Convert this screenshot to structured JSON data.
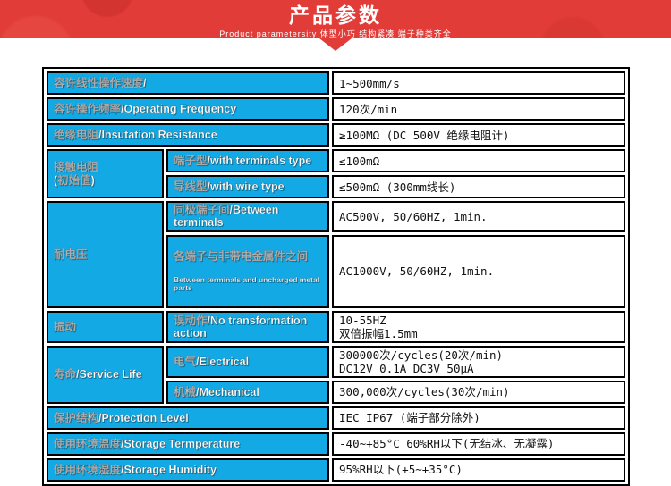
{
  "banner": {
    "title": "产品参数",
    "subtitle": "Product parametersity  体型小巧 结构紧凑 端子种类齐全",
    "background_color": "#e23c38"
  },
  "colors": {
    "banner_red": "#e23c38",
    "cell_blue": "#12a9e5",
    "border_black": "#000000",
    "label_text": "#ffffff",
    "value_text": "#111111"
  },
  "table": {
    "rows": [
      {
        "label": "容许线性操作速度/",
        "value": "1~500mm/s"
      },
      {
        "label": "容许操作频率/Operating Frequency",
        "value": "120次/min"
      },
      {
        "label": "绝缘电阻/Insutation Resistance",
        "value": "≥100MΩ (DC 500V 绝缘电阻计)"
      },
      {
        "group": "接触电阻\n(初始值)",
        "label": "端子型/with terminals type",
        "value": "≤100mΩ"
      },
      {
        "label": "导线型/with wire type",
        "value": "≤500mΩ (300mm线长)"
      },
      {
        "group": "耐电压",
        "label": "同极端子间/Between terminals",
        "value": "AC500V, 50/60HZ, 1min."
      },
      {
        "label": "各端子与非带电金属件之间",
        "label_sub": "Between terminals and uncharged metal parts",
        "value": "AC1000V, 50/60HZ, 1min."
      },
      {
        "group": "振动",
        "label": "误动作/No transformation action",
        "value": "10-55HZ\n双倍振幅1.5mm"
      },
      {
        "group": "寿命/Service Life",
        "label": "电气/Electrical",
        "value": "300000次/cycles(20次/min)\nDC12V 0.1A  DC3V 50μA"
      },
      {
        "label": "机械/Mechanical",
        "value": "300,000次/cycles(30次/min)"
      },
      {
        "label": "保护结构/Protection Level",
        "value": "IEC IP67 (端子部分除外)"
      },
      {
        "label": "使用环境温度/Storage Termperature",
        "value": "-40~+85°C 60%RH以下(无结冰、无凝露)"
      },
      {
        "label": "使用环境湿度/Storage Humidity",
        "value": "95%RH以下(+5~+35°C)"
      }
    ]
  }
}
